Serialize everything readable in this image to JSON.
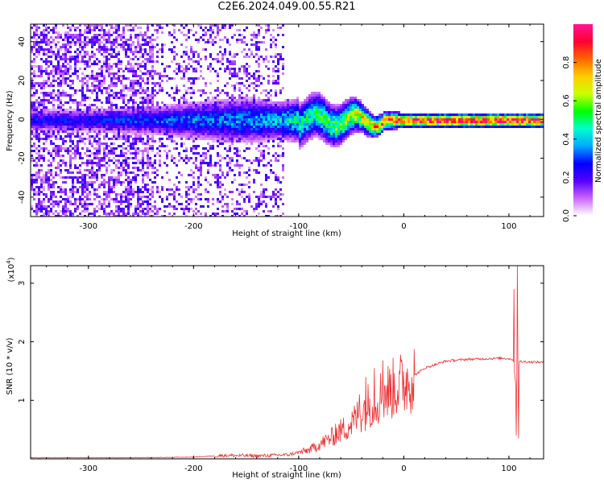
{
  "title": "C2E6.2024.049.00.55.R21",
  "chart_data": [
    {
      "type": "heatmap",
      "xlabel": "Height of straight line (km)",
      "ylabel": "Frequency (Hz)",
      "xlim": [
        -355,
        133
      ],
      "ylim": [
        -50,
        49
      ],
      "xticks": [
        -300,
        -200,
        -100,
        0,
        100
      ],
      "xtick_labels": [
        "-300",
        "-200",
        "-100",
        "0",
        "100"
      ],
      "yticks": [
        -40,
        -20,
        0,
        20,
        40
      ],
      "ytick_labels": [
        "-40",
        "-20",
        "0",
        "20",
        "40"
      ],
      "colorbar": {
        "label": "Normalized spectral amplitude",
        "range": [
          0,
          1
        ],
        "ticks": [
          0,
          0.2,
          0.4,
          0.6,
          0.8
        ],
        "tick_labels": [
          "0.0",
          "0.2",
          "0.4",
          "0.6",
          "0.8"
        ],
        "colors": [
          "#ffffff",
          "#cc66ff",
          "#5500ff",
          "#0000ff",
          "#00aaff",
          "#00ffcc",
          "#00ff00",
          "#ccff00",
          "#ffcc00",
          "#ff6600",
          "#ff0033",
          "#ff1493"
        ]
      },
      "band": {
        "center_freq": 0,
        "points": [
          {
            "x": -300,
            "amp": 0.25,
            "width": 3
          },
          {
            "x": -230,
            "amp": 0.3,
            "width": 4
          },
          {
            "x": -200,
            "amp": 0.32,
            "width": 5
          },
          {
            "x": -150,
            "amp": 0.35,
            "width": 6
          },
          {
            "x": -120,
            "amp": 0.38,
            "width": 5
          },
          {
            "x": -100,
            "amp": 0.45,
            "width": 6
          },
          {
            "x": -80,
            "amp": 0.5,
            "width": 6
          },
          {
            "x": -50,
            "amp": 0.6,
            "width": 5
          },
          {
            "x": -30,
            "amp": 0.75,
            "width": 3
          },
          {
            "x": 0,
            "amp": 0.9,
            "width": 2
          },
          {
            "x": 50,
            "amp": 0.92,
            "width": 2
          },
          {
            "x": 100,
            "amp": 0.95,
            "width": 2
          },
          {
            "x": 133,
            "amp": 0.9,
            "width": 2
          }
        ],
        "noise_region": [
          -355,
          -115
        ]
      }
    },
    {
      "type": "line",
      "xlabel": "Height of straight line (km)",
      "ylabel": "SNR (10 * v/v)",
      "y_multiplier": "(x10",
      "y_multiplier_exp": "4",
      "y_multiplier_close": ")",
      "xlim": [
        -355,
        133
      ],
      "ylim": [
        0,
        3.3
      ],
      "xticks": [
        -300,
        -200,
        -100,
        0,
        100
      ],
      "xtick_labels": [
        "-300",
        "-200",
        "-100",
        "0",
        "100"
      ],
      "yticks": [
        1,
        2,
        3
      ],
      "ytick_labels": [
        "1",
        "2",
        "3"
      ],
      "color": "#ee3333",
      "envelope": [
        {
          "x": -355,
          "y": 0.02
        },
        {
          "x": -250,
          "y": 0.02
        },
        {
          "x": -200,
          "y": 0.03
        },
        {
          "x": -170,
          "y": 0.06
        },
        {
          "x": -140,
          "y": 0.05
        },
        {
          "x": -110,
          "y": 0.07
        },
        {
          "x": -90,
          "y": 0.15
        },
        {
          "x": -70,
          "y": 0.35
        },
        {
          "x": -50,
          "y": 0.6
        },
        {
          "x": -35,
          "y": 0.9
        },
        {
          "x": -20,
          "y": 1.1
        },
        {
          "x": 0,
          "y": 1.3
        },
        {
          "x": 20,
          "y": 1.55
        },
        {
          "x": 40,
          "y": 1.67
        },
        {
          "x": 60,
          "y": 1.7
        },
        {
          "x": 95,
          "y": 1.72
        },
        {
          "x": 104,
          "y": 1.7
        },
        {
          "x": 107,
          "y": 1.2
        },
        {
          "x": 110,
          "y": 1.66
        },
        {
          "x": 133,
          "y": 1.65
        }
      ],
      "spikes": [
        {
          "x": -65,
          "y": 0.6
        },
        {
          "x": -42,
          "y": 1.1
        },
        {
          "x": -36,
          "y": 1.4
        },
        {
          "x": -28,
          "y": 1.55
        },
        {
          "x": -20,
          "y": 1.68
        },
        {
          "x": 105,
          "y": 2.9
        },
        {
          "x": 107,
          "y": 0.4
        },
        {
          "x": 108,
          "y": 3.3
        },
        {
          "x": 109,
          "y": 0.35
        }
      ]
    }
  ]
}
